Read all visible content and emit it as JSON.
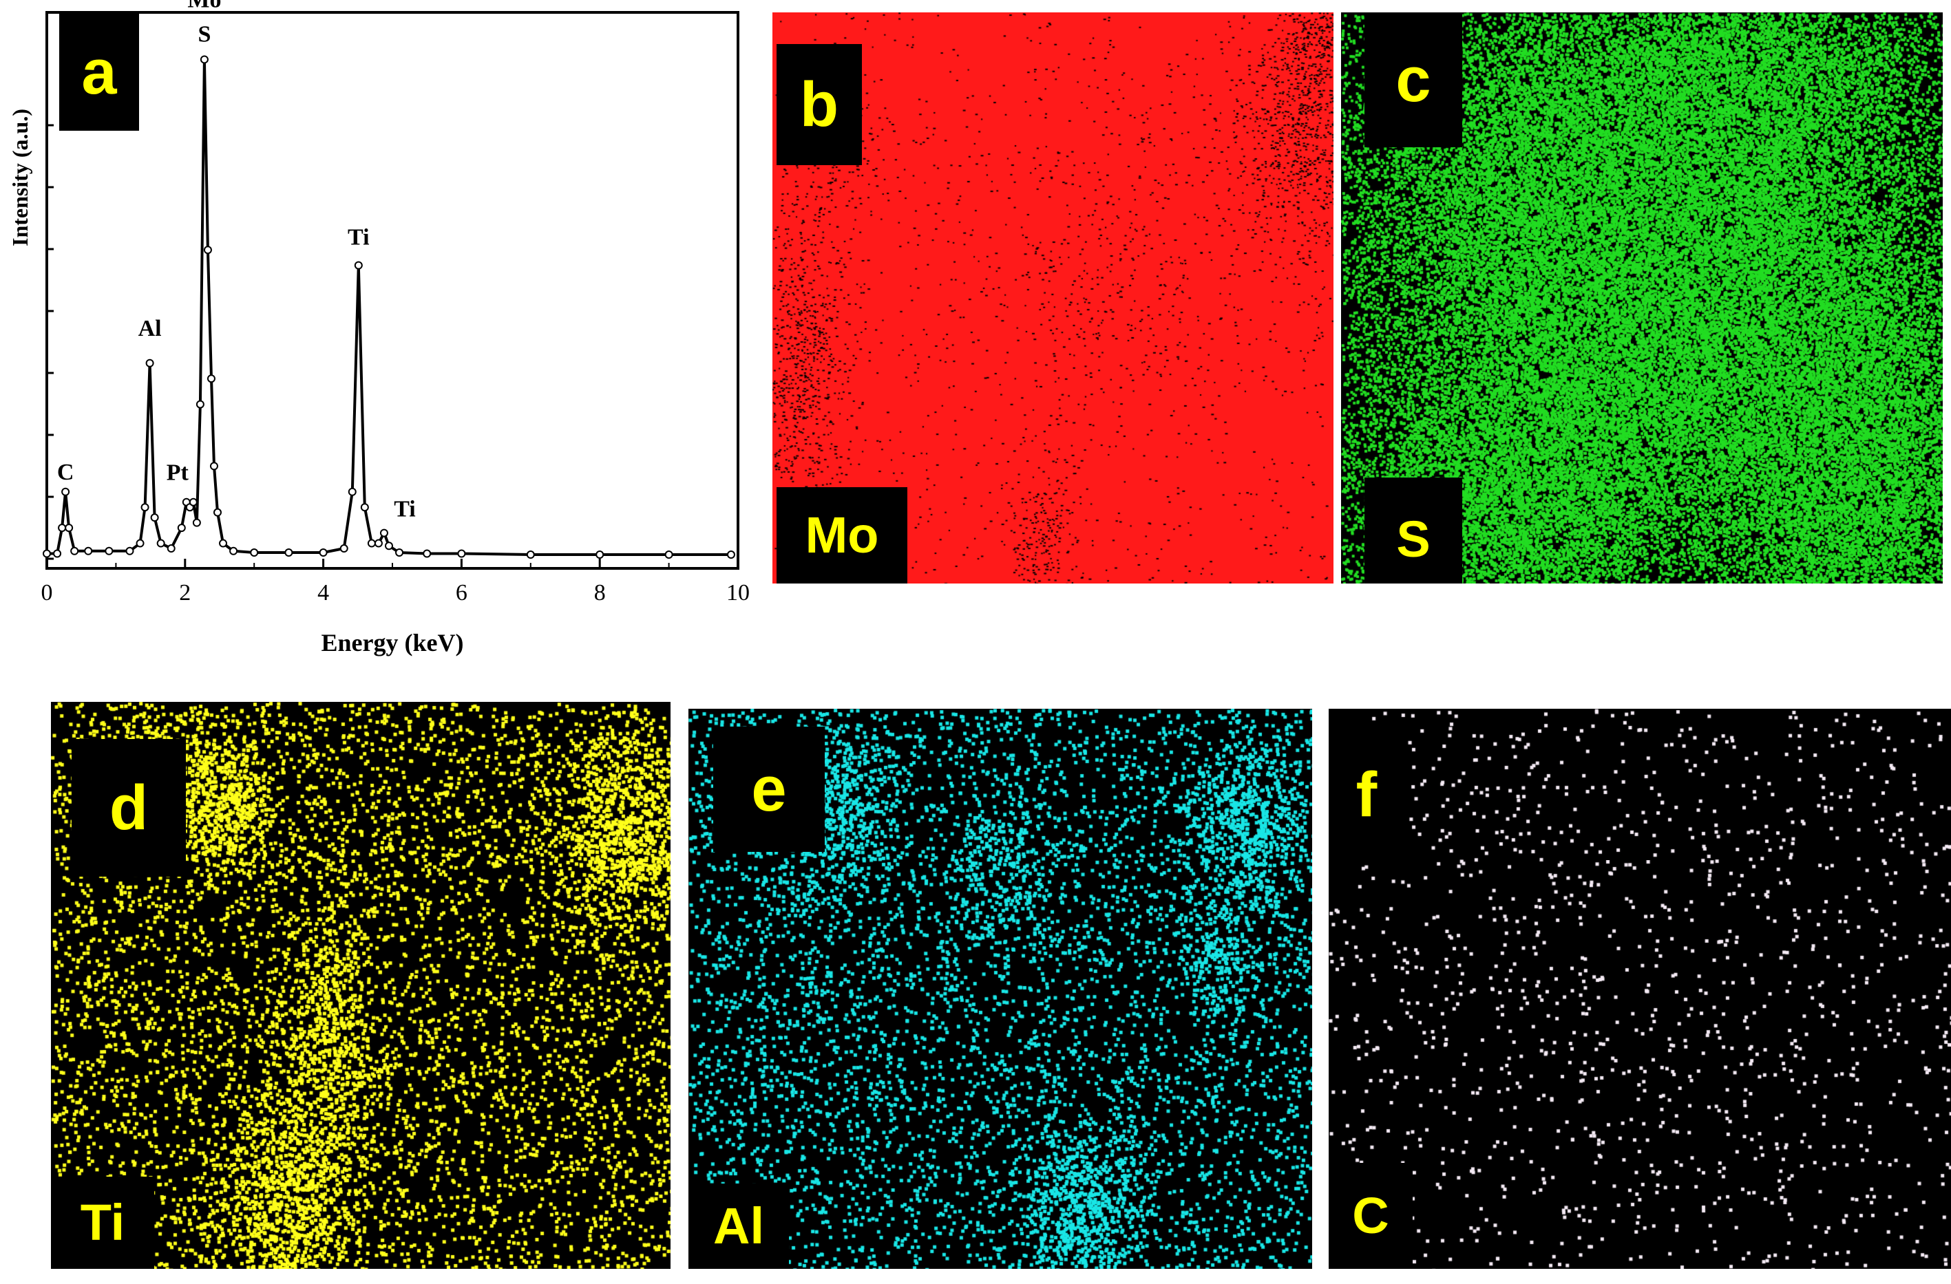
{
  "panels": {
    "a": {
      "label": "a"
    },
    "b": {
      "label": "b",
      "element": "Mo",
      "color": "#ff1a1a"
    },
    "c": {
      "label": "c",
      "element": "S",
      "color": "#22dd22"
    },
    "d": {
      "label": "d",
      "element": "Ti",
      "color": "#ffff1a"
    },
    "e": {
      "label": "e",
      "element": "Al",
      "color": "#19e6e6"
    },
    "f": {
      "label": "f",
      "element": "C",
      "color": "#f4eaf4"
    }
  },
  "label_color": "#ffff00",
  "chart_data": {
    "type": "line",
    "title": "",
    "xlabel": "Energy (keV)",
    "ylabel": "Intensity (a.u.)",
    "xlim": [
      0,
      10
    ],
    "xticks": [
      0,
      2,
      4,
      6,
      8,
      10
    ],
    "yticks_labeled": false,
    "series": [
      {
        "x": [
          0.0,
          0.15,
          0.22,
          0.27,
          0.32,
          0.4,
          0.6,
          0.9,
          1.2,
          1.35,
          1.42,
          1.49,
          1.56,
          1.65,
          1.8,
          1.95,
          2.02,
          2.07,
          2.12,
          2.17,
          2.22,
          2.28,
          2.33,
          2.38,
          2.42,
          2.47,
          2.55,
          2.7,
          3.0,
          3.5,
          4.0,
          4.3,
          4.42,
          4.51,
          4.6,
          4.7,
          4.8,
          4.88,
          4.95,
          5.1,
          5.5,
          6.0,
          7.0,
          8.0,
          9.0,
          9.9
        ],
        "y": [
          0.01,
          0.01,
          0.06,
          0.13,
          0.06,
          0.015,
          0.015,
          0.015,
          0.015,
          0.03,
          0.1,
          0.38,
          0.08,
          0.03,
          0.02,
          0.06,
          0.11,
          0.1,
          0.11,
          0.07,
          0.3,
          0.97,
          0.6,
          0.35,
          0.18,
          0.09,
          0.03,
          0.015,
          0.012,
          0.012,
          0.012,
          0.02,
          0.13,
          0.57,
          0.1,
          0.03,
          0.03,
          0.05,
          0.025,
          0.012,
          0.01,
          0.01,
          0.008,
          0.008,
          0.008,
          0.008
        ]
      }
    ],
    "peak_labels": [
      {
        "text": "C",
        "x": 0.27,
        "y": 0.13
      },
      {
        "text": "Al",
        "x": 1.49,
        "y": 0.38
      },
      {
        "text": "Pt",
        "x": 2.09,
        "y": 0.11
      },
      {
        "text": "Mo",
        "x": 2.28,
        "y": 0.97,
        "line": 1
      },
      {
        "text": "S",
        "x": 2.28,
        "y": 0.97,
        "line": 0
      },
      {
        "text": "Ti",
        "x": 4.51,
        "y": 0.57
      },
      {
        "text": "Ti",
        "x": 4.88,
        "y": 0.05
      }
    ]
  }
}
